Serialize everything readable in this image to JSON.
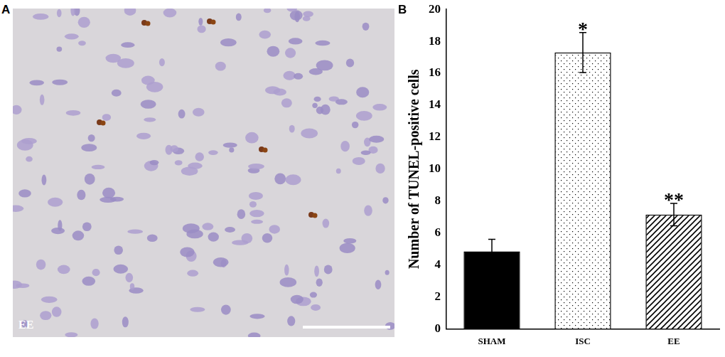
{
  "panel_labels": [
    "A",
    "B"
  ],
  "image": {
    "label": "EE"
  },
  "chart_data": {
    "type": "bar",
    "y_label": "Number of TUNEL-positive cells",
    "categories": [
      "SHAM",
      "ISC",
      "EE"
    ],
    "values": [
      4.85,
      17.3,
      7.15
    ],
    "errors": [
      0.75,
      1.25,
      0.7
    ],
    "significance": [
      null,
      "*",
      "**"
    ],
    "colors": [
      "#000000",
      "#ffffff",
      "#ffffff"
    ],
    "ylim": [
      0,
      20
    ],
    "yticks": [
      0,
      2,
      4,
      6,
      8,
      10,
      12,
      14,
      16,
      18,
      20
    ],
    "grid": false
  }
}
